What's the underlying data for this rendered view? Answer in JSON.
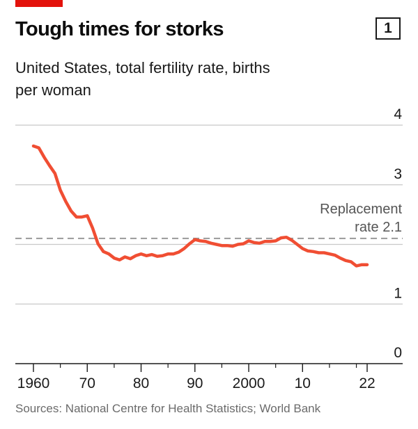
{
  "header": {
    "title": "Tough times for storks",
    "chart_number": "1",
    "subtitle": "United States, total fertility rate, births per woman"
  },
  "source": "Sources: National Centre for Health Statistics; World Bank",
  "colors": {
    "series": "#f04e33",
    "accent_tag": "#e3120b",
    "grid": "#c8c8c8",
    "reference_line": "#999999"
  },
  "chart_data": {
    "type": "line",
    "title": "Tough times for storks",
    "subtitle": "United States, total fertility rate, births per woman",
    "ylim": [
      0,
      4
    ],
    "xlim": [
      1960,
      2022
    ],
    "yticks": [
      {
        "value": 4,
        "label": "4"
      },
      {
        "value": 3,
        "label": "3"
      },
      {
        "value": 1,
        "label": "1"
      },
      {
        "value": 0,
        "label": "0"
      }
    ],
    "xticks": [
      {
        "value": 1960,
        "label": "1960"
      },
      {
        "value": 1970,
        "label": "70"
      },
      {
        "value": 1980,
        "label": "80"
      },
      {
        "value": 1990,
        "label": "90"
      },
      {
        "value": 2000,
        "label": "2000"
      },
      {
        "value": 2010,
        "label": "10"
      },
      {
        "value": 2022,
        "label": "22"
      }
    ],
    "minor_xticks": [
      1965,
      1975,
      1985,
      1995,
      2005,
      2015,
      2020
    ],
    "reference_line": {
      "value": 2.1,
      "label_lines": [
        "Replacement",
        "rate 2.1"
      ]
    },
    "grid": true,
    "series": [
      {
        "x": [
          1960,
          1961,
          1962,
          1963,
          1964,
          1965,
          1966,
          1967,
          1968,
          1969,
          1970,
          1971,
          1972,
          1973,
          1974,
          1975,
          1976,
          1977,
          1978,
          1979,
          1980,
          1981,
          1982,
          1983,
          1984,
          1985,
          1986,
          1987,
          1988,
          1989,
          1990,
          1991,
          1992,
          1993,
          1994,
          1995,
          1996,
          1997,
          1998,
          1999,
          2000,
          2001,
          2002,
          2003,
          2004,
          2005,
          2006,
          2007,
          2008,
          2009,
          2010,
          2011,
          2012,
          2013,
          2014,
          2015,
          2016,
          2017,
          2018,
          2019,
          2020,
          2021,
          2022
        ],
        "y": [
          3.65,
          3.62,
          3.46,
          3.32,
          3.19,
          2.91,
          2.72,
          2.56,
          2.46,
          2.46,
          2.48,
          2.27,
          2.01,
          1.88,
          1.84,
          1.77,
          1.74,
          1.79,
          1.76,
          1.81,
          1.84,
          1.81,
          1.83,
          1.8,
          1.81,
          1.84,
          1.84,
          1.87,
          1.93,
          2.01,
          2.08,
          2.06,
          2.05,
          2.02,
          2.0,
          1.98,
          1.98,
          1.97,
          2.0,
          2.01,
          2.06,
          2.03,
          2.02,
          2.05,
          2.05,
          2.06,
          2.11,
          2.12,
          2.07,
          2.0,
          1.93,
          1.89,
          1.88,
          1.86,
          1.86,
          1.84,
          1.82,
          1.77,
          1.73,
          1.71,
          1.64,
          1.66,
          1.66
        ]
      }
    ]
  }
}
